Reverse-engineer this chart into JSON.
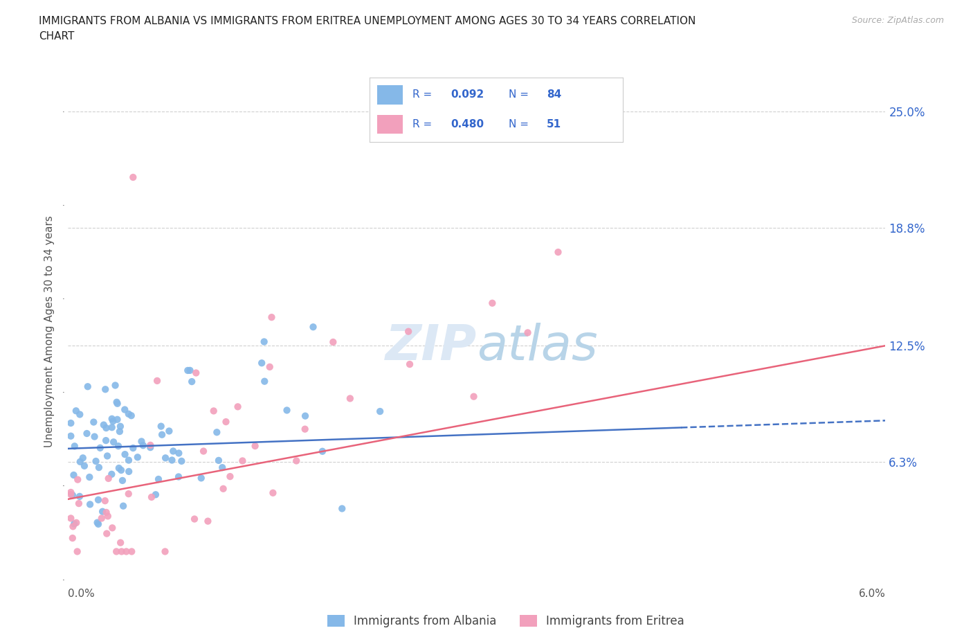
{
  "title_line1": "IMMIGRANTS FROM ALBANIA VS IMMIGRANTS FROM ERITREA UNEMPLOYMENT AMONG AGES 30 TO 34 YEARS CORRELATION",
  "title_line2": "CHART",
  "source": "Source: ZipAtlas.com",
  "ylabel": "Unemployment Among Ages 30 to 34 years",
  "xlim": [
    0.0,
    0.06
  ],
  "ylim": [
    0.0,
    0.265
  ],
  "ytick_positions": [
    0.063,
    0.125,
    0.188,
    0.25
  ],
  "yticklabels": [
    "6.3%",
    "12.5%",
    "18.8%",
    "25.0%"
  ],
  "r_albania": 0.092,
  "n_albania": 84,
  "r_eritrea": 0.48,
  "n_eritrea": 51,
  "color_albania": "#85b8e8",
  "color_eritrea": "#f2a0bc",
  "trendline_albania_color": "#4472c4",
  "trendline_eritrea_color": "#e8637a",
  "background_color": "#ffffff",
  "grid_color": "#d0d0d0",
  "legend_text_color": "#3366cc",
  "watermark_color": "#dce8f5",
  "ylabel_color": "#555555",
  "tick_color": "#555555"
}
